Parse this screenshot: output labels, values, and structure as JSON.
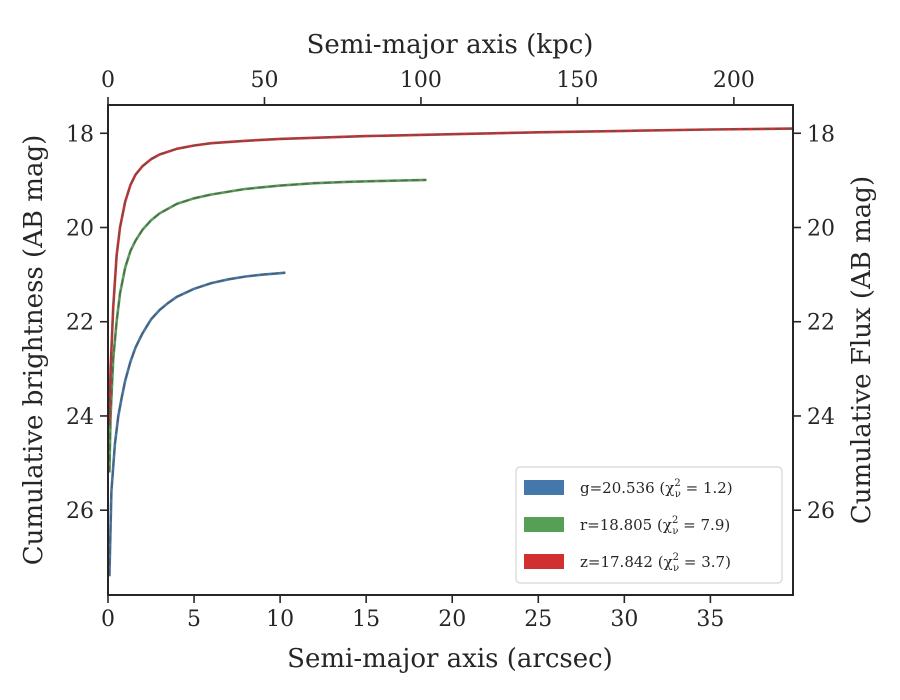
{
  "chart_data": {
    "type": "line",
    "x_label": "Semi-major axis (arcsec)",
    "x_top_label": "Semi-major axis (kpc)",
    "y_label": "Cumulative brightness (AB mag)",
    "y_right_label": "Cumulative Flux (AB mag)",
    "xlim": [
      0,
      39.8
    ],
    "ylim": [
      27.8,
      17.4
    ],
    "x_top_lim": [
      0,
      218.9
    ],
    "y_inverted": true,
    "x_ticks": [
      0,
      5,
      10,
      15,
      20,
      25,
      30,
      35
    ],
    "x_top_ticks": [
      0,
      50,
      100,
      150,
      200
    ],
    "y_ticks": [
      18,
      20,
      22,
      24,
      26
    ],
    "grid": false,
    "legend_position": "lower-right",
    "series": [
      {
        "band": "g",
        "name": "g=20.536 (χ²ν = 1.2)",
        "legend_main": "g=20.536 (χ",
        "legend_sup": "2",
        "legend_sub": "ν",
        "legend_tail": " = 1.2)",
        "color": "#4477aa",
        "total_mag": 20.536,
        "chi2nu": 1.2,
        "x": [
          0.08,
          0.2,
          0.4,
          0.6,
          0.8,
          1.0,
          1.3,
          1.6,
          2.0,
          2.5,
          3.0,
          3.5,
          4.0,
          5.0,
          6.0,
          7.0,
          8.0,
          9.0,
          10.0,
          10.3
        ],
        "y": [
          27.4,
          25.6,
          24.6,
          24.0,
          23.6,
          23.25,
          22.85,
          22.55,
          22.25,
          21.95,
          21.75,
          21.6,
          21.47,
          21.3,
          21.18,
          21.1,
          21.04,
          21.0,
          20.97,
          20.96
        ]
      },
      {
        "band": "r",
        "name": "r=18.805 (χ²ν = 7.9)",
        "legend_main": "r=18.805 (χ",
        "legend_sup": "2",
        "legend_sub": "ν",
        "legend_tail": " = 7.9)",
        "color": "#55a054",
        "total_mag": 18.805,
        "chi2nu": 7.9,
        "x": [
          0.08,
          0.15,
          0.3,
          0.5,
          0.7,
          1.0,
          1.3,
          1.6,
          2.0,
          2.5,
          3.0,
          4.0,
          5.0,
          6.0,
          8.0,
          10.0,
          12.0,
          14.0,
          16.0,
          18.5
        ],
        "y": [
          25.2,
          24.0,
          22.8,
          22.0,
          21.4,
          20.85,
          20.5,
          20.28,
          20.05,
          19.85,
          19.7,
          19.5,
          19.38,
          19.3,
          19.18,
          19.11,
          19.06,
          19.03,
          19.01,
          18.99
        ]
      },
      {
        "band": "z",
        "name": "z=17.842 (χ²ν = 3.7)",
        "legend_main": "z=17.842 (χ",
        "legend_sup": "2",
        "legend_sub": "ν",
        "legend_tail": " = 3.7)",
        "color": "#d03030",
        "total_mag": 17.842,
        "chi2nu": 3.7,
        "x": [
          0.08,
          0.15,
          0.3,
          0.5,
          0.7,
          1.0,
          1.3,
          1.6,
          2.0,
          2.5,
          3.0,
          4.0,
          5.0,
          6.0,
          8.0,
          10.0,
          15.0,
          20.0,
          25.0,
          30.0,
          35.0,
          39.8
        ],
        "y": [
          24.2,
          23.0,
          21.7,
          20.6,
          20.0,
          19.45,
          19.1,
          18.88,
          18.7,
          18.55,
          18.45,
          18.33,
          18.26,
          18.21,
          18.16,
          18.12,
          18.06,
          18.02,
          17.98,
          17.95,
          17.92,
          17.9
        ]
      }
    ]
  }
}
